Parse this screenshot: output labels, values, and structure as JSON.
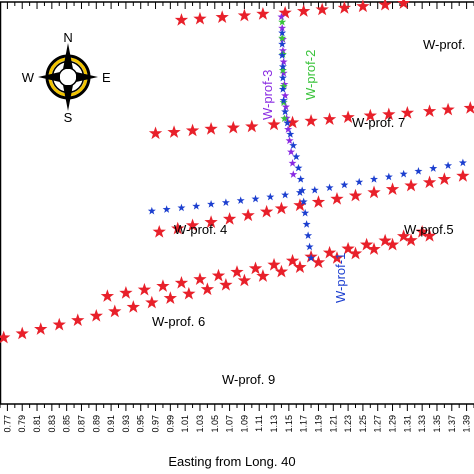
{
  "chart_data": {
    "type": "scatter",
    "xlabel": "Easting from Long. 40",
    "x_ticks": [
      "0.77",
      "0.79",
      "0.81",
      "0.83",
      "0.85",
      "0.87",
      "0.89",
      "0.91",
      "0.93",
      "0.95",
      "0.97",
      "0.99",
      "1.01",
      "1.03",
      "1.05",
      "1.07",
      "1.09",
      "1.11",
      "1.13",
      "1.15",
      "1.17",
      "1.19",
      "1.21",
      "1.23",
      "1.25",
      "1.27",
      "1.29",
      "1.31",
      "1.33",
      "1.35",
      "1.37",
      "1.39"
    ],
    "xlim": [
      0.76,
      1.4
    ],
    "ylim": [
      0,
      100
    ],
    "colors": {
      "red": "#e8202a",
      "blue": "#1c3fcf",
      "green": "#39c33a",
      "purple": "#8a2be2"
    },
    "compass": {
      "north": "N",
      "south": "S",
      "east": "E",
      "west": "W"
    },
    "profiles": [
      {
        "label": "W-prof.",
        "label_color": "#000000",
        "marker_color": "#e8202a",
        "points": [
          [
            1.005,
            95.5
          ],
          [
            1.03,
            95.8
          ],
          [
            1.06,
            96.2
          ],
          [
            1.09,
            96.6
          ],
          [
            1.115,
            97.0
          ],
          [
            1.145,
            97.3
          ],
          [
            1.17,
            97.7
          ],
          [
            1.195,
            98.1
          ],
          [
            1.225,
            98.5
          ],
          [
            1.25,
            98.9
          ],
          [
            1.28,
            99.3
          ],
          [
            1.305,
            99.7
          ],
          [
            1.33,
            100.1
          ],
          [
            1.36,
            100.5
          ],
          [
            1.385,
            100.9
          ],
          [
            1.41,
            101.3
          ],
          [
            1.44,
            101.6
          ],
          [
            1.465,
            102.0
          ]
        ]
      },
      {
        "label": "W-prof. 7",
        "label_color": "#000000",
        "marker_color": "#e8202a",
        "points": [
          [
            0.97,
            67.3
          ],
          [
            0.995,
            67.6
          ],
          [
            1.02,
            68.0
          ],
          [
            1.045,
            68.4
          ],
          [
            1.075,
            68.7
          ],
          [
            1.1,
            69.0
          ],
          [
            1.13,
            69.5
          ],
          [
            1.155,
            70.0
          ],
          [
            1.18,
            70.4
          ],
          [
            1.205,
            70.8
          ],
          [
            1.23,
            71.3
          ],
          [
            1.26,
            71.7
          ],
          [
            1.285,
            72.0
          ],
          [
            1.31,
            72.4
          ],
          [
            1.34,
            72.8
          ],
          [
            1.365,
            73.2
          ],
          [
            1.395,
            73.6
          ]
        ]
      },
      {
        "label": "W-prof. 4",
        "label_color": "#000000",
        "marker_color": "#e8202a",
        "points": [
          [
            0.975,
            42.8
          ],
          [
            1.0,
            43.6
          ],
          [
            1.02,
            44.4
          ],
          [
            1.045,
            45.2
          ],
          [
            1.07,
            46.0
          ],
          [
            1.095,
            46.9
          ],
          [
            1.12,
            47.8
          ],
          [
            1.14,
            48.6
          ],
          [
            1.165,
            49.4
          ],
          [
            1.19,
            50.2
          ],
          [
            1.215,
            51.0
          ],
          [
            1.24,
            51.8
          ],
          [
            1.265,
            52.6
          ],
          [
            1.29,
            53.4
          ],
          [
            1.315,
            54.3
          ],
          [
            1.34,
            55.1
          ],
          [
            1.36,
            55.9
          ],
          [
            1.385,
            56.7
          ]
        ]
      },
      {
        "label": "W-prof.5",
        "label_color": "#000000",
        "marker_color": "#1c3fcf",
        "points": [
          [
            0.965,
            48.0
          ],
          [
            0.985,
            48.4
          ],
          [
            1.005,
            48.8
          ],
          [
            1.025,
            49.2
          ],
          [
            1.045,
            49.7
          ],
          [
            1.065,
            50.1
          ],
          [
            1.085,
            50.6
          ],
          [
            1.105,
            51.0
          ],
          [
            1.125,
            51.5
          ],
          [
            1.145,
            52.0
          ],
          [
            1.165,
            52.6
          ],
          [
            1.185,
            53.2
          ],
          [
            1.205,
            53.8
          ],
          [
            1.225,
            54.5
          ],
          [
            1.245,
            55.2
          ],
          [
            1.265,
            55.9
          ],
          [
            1.285,
            56.5
          ],
          [
            1.305,
            57.2
          ],
          [
            1.325,
            57.9
          ],
          [
            1.345,
            58.6
          ],
          [
            1.365,
            59.3
          ],
          [
            1.385,
            60.0
          ]
        ]
      },
      {
        "label": "W-prof. 6",
        "label_color": "#000000",
        "marker_color": "#e8202a",
        "points": [
          [
            0.905,
            26.8
          ],
          [
            0.93,
            27.6
          ],
          [
            0.955,
            28.4
          ],
          [
            0.98,
            29.3
          ],
          [
            1.005,
            30.1
          ],
          [
            1.03,
            31.0
          ],
          [
            1.055,
            31.9
          ],
          [
            1.08,
            32.8
          ],
          [
            1.105,
            33.7
          ],
          [
            1.13,
            34.6
          ],
          [
            1.155,
            35.6
          ],
          [
            1.18,
            36.6
          ],
          [
            1.205,
            37.6
          ],
          [
            1.23,
            38.6
          ],
          [
            1.255,
            39.6
          ],
          [
            1.28,
            40.6
          ],
          [
            1.305,
            41.7
          ],
          [
            1.33,
            42.8
          ]
        ]
      },
      {
        "label": "W-prof. 9",
        "label_color": "#000000",
        "marker_color": "#e8202a",
        "points": [
          [
            0.765,
            16.5
          ],
          [
            0.79,
            17.5
          ],
          [
            0.815,
            18.6
          ],
          [
            0.84,
            19.7
          ],
          [
            0.865,
            20.8
          ],
          [
            0.89,
            21.9
          ],
          [
            0.915,
            23.0
          ],
          [
            0.94,
            24.1
          ],
          [
            0.965,
            25.2
          ],
          [
            0.99,
            26.3
          ],
          [
            1.015,
            27.4
          ],
          [
            1.04,
            28.5
          ],
          [
            1.065,
            29.6
          ],
          [
            1.09,
            30.7
          ],
          [
            1.115,
            31.8
          ],
          [
            1.14,
            32.9
          ],
          [
            1.165,
            34.0
          ],
          [
            1.19,
            35.2
          ],
          [
            1.215,
            36.3
          ],
          [
            1.24,
            37.4
          ],
          [
            1.265,
            38.5
          ],
          [
            1.29,
            39.6
          ],
          [
            1.315,
            40.7
          ],
          [
            1.34,
            41.8
          ]
        ]
      },
      {
        "label": "W-prof-3",
        "label_color": "#8a2be2",
        "marker_color": "#8a2be2",
        "points": [
          [
            1.14,
            96.3
          ],
          [
            1.141,
            93.5
          ],
          [
            1.142,
            90.7
          ],
          [
            1.142,
            87.9
          ],
          [
            1.143,
            85.1
          ],
          [
            1.143,
            82.3
          ],
          [
            1.144,
            79.5
          ],
          [
            1.145,
            76.7
          ],
          [
            1.146,
            73.9
          ],
          [
            1.147,
            71.1
          ],
          [
            1.149,
            68.3
          ],
          [
            1.151,
            65.5
          ],
          [
            1.153,
            62.7
          ],
          [
            1.155,
            59.9
          ],
          [
            1.156,
            57.1
          ]
        ]
      },
      {
        "label": "W-prof-2",
        "label_color": "#39c33a",
        "marker_color": "#39c33a",
        "points": [
          [
            1.141,
            95.0
          ],
          [
            1.141,
            91.0
          ],
          [
            1.142,
            87.0
          ],
          [
            1.142,
            83.0
          ],
          [
            1.143,
            79.0
          ],
          [
            1.143,
            75.0
          ],
          [
            1.144,
            71.0
          ]
        ]
      },
      {
        "label": "W-prof-1",
        "label_color": "#1c3fcf",
        "marker_color": "#1c3fcf",
        "points": [
          [
            1.141,
            92.3
          ],
          [
            1.141,
            89.5
          ],
          [
            1.141,
            86.7
          ],
          [
            1.142,
            83.9
          ],
          [
            1.142,
            81.1
          ],
          [
            1.142,
            78.3
          ],
          [
            1.143,
            75.5
          ],
          [
            1.145,
            72.7
          ],
          [
            1.148,
            69.9
          ],
          [
            1.152,
            67.1
          ],
          [
            1.156,
            64.3
          ],
          [
            1.16,
            61.5
          ],
          [
            1.163,
            58.7
          ],
          [
            1.166,
            55.9
          ],
          [
            1.168,
            53.1
          ],
          [
            1.17,
            50.3
          ],
          [
            1.172,
            47.5
          ],
          [
            1.174,
            44.7
          ],
          [
            1.176,
            41.9
          ],
          [
            1.178,
            39.1
          ],
          [
            1.18,
            36.3
          ]
        ]
      }
    ]
  }
}
